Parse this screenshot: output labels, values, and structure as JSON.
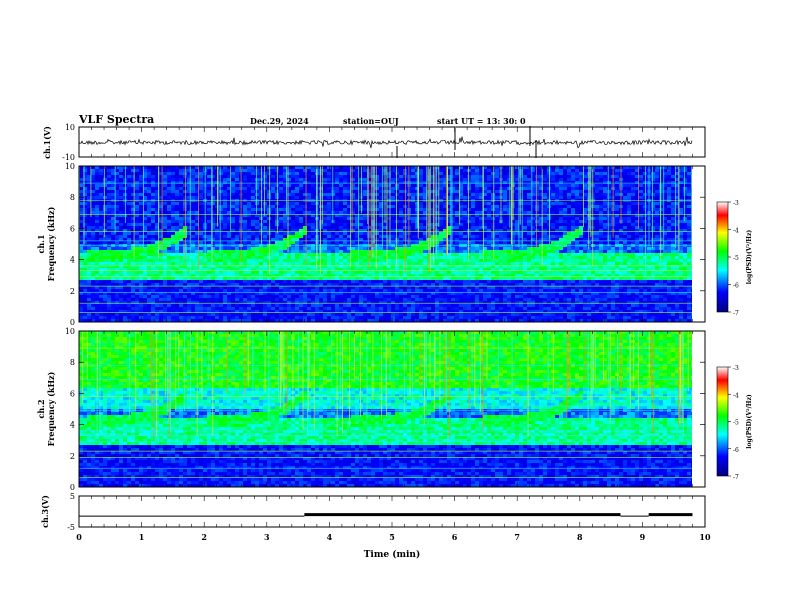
{
  "header": {
    "title": "VLF Spectra",
    "date": "Dec.29, 2024",
    "station": "station=OUJ",
    "start": "start  UT  =   13: 30: 0"
  },
  "chart_data": [
    {
      "type": "line",
      "panel": "ch1-waveform",
      "ylabel": "ch.1(V)",
      "yticks": [
        "10",
        "-10"
      ],
      "ylim": [
        -10,
        10
      ],
      "xlim": [
        0,
        10
      ],
      "note_values": "noise trace around 0 V"
    },
    {
      "type": "heatmap",
      "panel": "ch1-spectrogram",
      "ylabel_ch": "ch.1",
      "ylabel": "Frequency  (kHz)",
      "yticks": [
        "0",
        "2",
        "4",
        "6",
        "8",
        "10"
      ],
      "ylim": [
        0,
        10
      ],
      "xlim": [
        0,
        10
      ],
      "colorbar": {
        "label": "log(PSD)(V²/Hz)",
        "ticks": [
          "-3",
          "-4",
          "-5",
          "-6",
          "-7"
        ],
        "range": [
          -7,
          -3
        ]
      }
    },
    {
      "type": "heatmap",
      "panel": "ch2-spectrogram",
      "ylabel_ch": "ch.2",
      "ylabel": "Frequency  (kHz)",
      "yticks": [
        "0",
        "2",
        "4",
        "6",
        "8",
        "10"
      ],
      "ylim": [
        0,
        10
      ],
      "xlim": [
        0,
        10
      ],
      "colorbar": {
        "label": "log(PSD)(V²/Hz)",
        "ticks": [
          "-3",
          "-4",
          "-5",
          "-6",
          "-7"
        ],
        "range": [
          -7,
          -3
        ]
      }
    },
    {
      "type": "line",
      "panel": "ch3-signal",
      "ylabel": "ch.3(V)",
      "yticks": [
        "5",
        "-5"
      ],
      "ylim": [
        -5,
        5
      ],
      "xlim": [
        0,
        10
      ],
      "xlabel": "Time  (min)",
      "xticks": [
        "0",
        "1",
        "2",
        "3",
        "4",
        "5",
        "6",
        "7",
        "8",
        "9",
        "10"
      ],
      "segments": [
        {
          "x": [
            0,
            3.6
          ],
          "y": -1.5
        },
        {
          "x": [
            3.6,
            8.65
          ],
          "y": -1.0
        },
        {
          "x": [
            8.65,
            9.1
          ],
          "y": -1.5
        },
        {
          "x": [
            9.1,
            9.8
          ],
          "y": -1.0
        }
      ]
    }
  ]
}
